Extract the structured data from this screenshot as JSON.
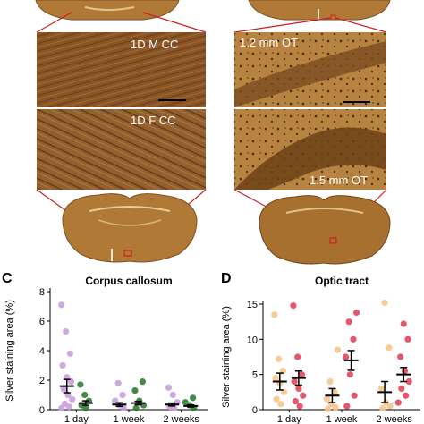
{
  "colors": {
    "tissue": "#b07a36",
    "micro_bg": "#8a5526",
    "zoom_line": "#cc2222",
    "day1_light": "#c9a0dc",
    "day1_dark": "#2e7d32",
    "ot_light": "#f6c48b",
    "ot_dark": "#e0465a",
    "mean_bar": "#000000"
  },
  "micrographs": [
    {
      "label": "1D M CC"
    },
    {
      "label": "1D F CC"
    },
    {
      "label": "1.2 mm OT"
    },
    {
      "label": "1.5 mm OT"
    }
  ],
  "panels": {
    "c_letter": "C",
    "d_letter": "D"
  },
  "chart_data": [
    {
      "type": "scatter",
      "title": "Corpus callosum",
      "ylabel": "Silver staining area (%)",
      "xlabel": "",
      "categories": [
        "1 day",
        "1 week",
        "2 weeks"
      ],
      "ylim": [
        0,
        8
      ],
      "yticks": [
        0,
        2,
        4,
        6,
        8
      ],
      "series": [
        {
          "color": "#c9a0dc",
          "points": [
            [
              0,
              7.1
            ],
            [
              0,
              5.3
            ],
            [
              0,
              3.8
            ],
            [
              0,
              3.0
            ],
            [
              0,
              2.2
            ],
            [
              0,
              1.9
            ],
            [
              0,
              1.4
            ],
            [
              0,
              1.0
            ],
            [
              0,
              0.7
            ],
            [
              0,
              0.4
            ],
            [
              0,
              0.2
            ],
            [
              0,
              0.1
            ],
            [
              1,
              1.8
            ],
            [
              1,
              1.0
            ],
            [
              1,
              0.6
            ],
            [
              1,
              0.3
            ],
            [
              1,
              0.1
            ],
            [
              2,
              1.5
            ],
            [
              2,
              1.0
            ],
            [
              2,
              0.5
            ],
            [
              2,
              0.2
            ],
            [
              2,
              0.1
            ]
          ]
        },
        {
          "color": "#2e7d32",
          "points": [
            [
              0,
              1.7
            ],
            [
              0,
              1.0
            ],
            [
              0,
              0.6
            ],
            [
              0,
              0.3
            ],
            [
              0,
              0.1
            ],
            [
              1,
              1.9
            ],
            [
              1,
              1.3
            ],
            [
              1,
              0.6
            ],
            [
              1,
              0.3
            ],
            [
              1,
              0.1
            ],
            [
              2,
              0.8
            ],
            [
              2,
              0.5
            ],
            [
              2,
              0.3
            ],
            [
              2,
              0.1
            ]
          ]
        }
      ],
      "means": [
        {
          "group": 0,
          "offset": -0.18,
          "mean": 1.6,
          "sem": 0.45
        },
        {
          "group": 0,
          "offset": 0.18,
          "mean": 0.45,
          "sem": 0.15
        },
        {
          "group": 1,
          "offset": -0.18,
          "mean": 0.35,
          "sem": 0.12
        },
        {
          "group": 1,
          "offset": 0.18,
          "mean": 0.45,
          "sem": 0.12
        },
        {
          "group": 2,
          "offset": -0.18,
          "mean": 0.35,
          "sem": 0.1
        },
        {
          "group": 2,
          "offset": 0.18,
          "mean": 0.25,
          "sem": 0.07
        }
      ]
    },
    {
      "type": "scatter",
      "title": "Optic tract",
      "ylabel": "Silver staining area (%)",
      "xlabel": "",
      "categories": [
        "1 day",
        "1 week",
        "2 weeks"
      ],
      "ylim": [
        0,
        15
      ],
      "yticks": [
        0,
        5,
        10,
        15
      ],
      "series": [
        {
          "color": "#f6c48b",
          "points": [
            [
              0,
              13.5
            ],
            [
              0,
              7.2
            ],
            [
              0,
              5.5
            ],
            [
              0,
              4.5
            ],
            [
              0,
              3.8
            ],
            [
              0,
              2.5
            ],
            [
              0,
              1.5
            ],
            [
              0,
              0.8
            ],
            [
              1,
              8.5
            ],
            [
              1,
              4.0
            ],
            [
              1,
              2.5
            ],
            [
              1,
              1.5
            ],
            [
              1,
              0.8
            ],
            [
              1,
              0.3
            ],
            [
              1,
              0.1
            ],
            [
              2,
              15.2
            ],
            [
              2,
              8.8
            ],
            [
              2,
              3.0
            ],
            [
              2,
              1.0
            ],
            [
              2,
              0.5
            ],
            [
              2,
              0.2
            ]
          ]
        },
        {
          "color": "#e0465a",
          "points": [
            [
              0,
              14.8
            ],
            [
              0,
              7.5
            ],
            [
              0,
              5.0
            ],
            [
              0,
              4.0
            ],
            [
              0,
              3.0
            ],
            [
              0,
              2.0
            ],
            [
              0,
              1.2
            ],
            [
              0,
              0.5
            ],
            [
              1,
              13.8
            ],
            [
              1,
              12.5
            ],
            [
              1,
              10.0
            ],
            [
              1,
              7.5
            ],
            [
              1,
              5.0
            ],
            [
              1,
              2.0
            ],
            [
              1,
              0.5
            ],
            [
              2,
              12.2
            ],
            [
              2,
              10.0
            ],
            [
              2,
              7.5
            ],
            [
              2,
              5.5
            ],
            [
              2,
              4.0
            ],
            [
              2,
              3.0
            ],
            [
              2,
              2.0
            ],
            [
              2,
              1.0
            ]
          ]
        }
      ],
      "means": [
        {
          "group": 0,
          "offset": -0.18,
          "mean": 4.0,
          "sem": 1.2
        },
        {
          "group": 0,
          "offset": 0.18,
          "mean": 4.5,
          "sem": 1.0
        },
        {
          "group": 1,
          "offset": -0.18,
          "mean": 2.0,
          "sem": 1.0
        },
        {
          "group": 1,
          "offset": 0.18,
          "mean": 7.0,
          "sem": 1.4
        },
        {
          "group": 2,
          "offset": -0.18,
          "mean": 2.5,
          "sem": 1.5
        },
        {
          "group": 2,
          "offset": 0.18,
          "mean": 5.0,
          "sem": 1.0
        }
      ]
    }
  ]
}
